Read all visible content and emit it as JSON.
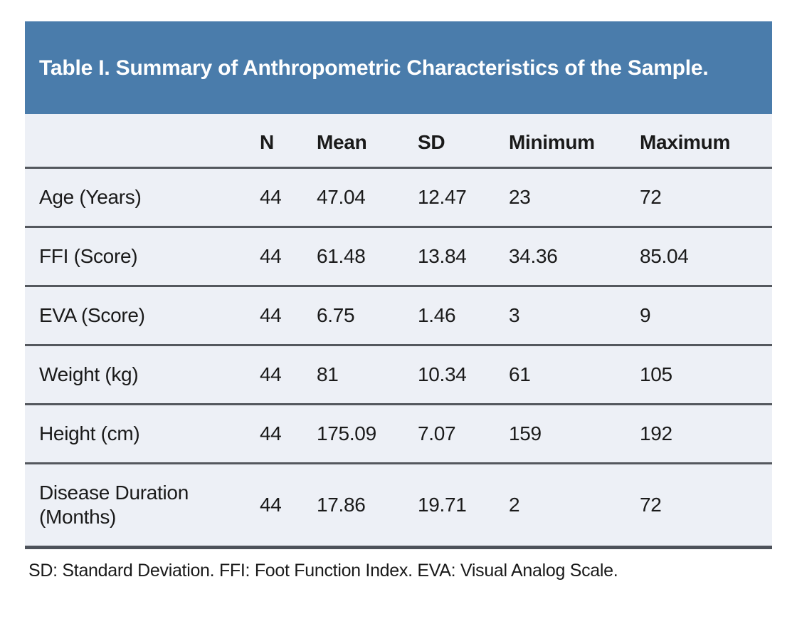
{
  "table": {
    "title": "Table I. Summary of Anthropometric Characteristics of the Sample.",
    "columns": [
      "",
      "N",
      "Mean",
      "SD",
      "Minimum",
      "Maximum"
    ],
    "rows": [
      {
        "label": "Age (Years)",
        "n": "44",
        "mean": "47.04",
        "sd": "12.47",
        "min": "23",
        "max": "72"
      },
      {
        "label": "FFI (Score)",
        "n": "44",
        "mean": "61.48",
        "sd": "13.84",
        "min": "34.36",
        "max": "85.04"
      },
      {
        "label": "EVA (Score)",
        "n": "44",
        "mean": "6.75",
        "sd": "1.46",
        "min": "3",
        "max": "9"
      },
      {
        "label": "Weight (kg)",
        "n": "44",
        "mean": "81",
        "sd": "10.34",
        "min": "61",
        "max": "105"
      },
      {
        "label": "Height (cm)",
        "n": "44",
        "mean": "175.09",
        "sd": "7.07",
        "min": "159",
        "max": "192"
      },
      {
        "label": "Disease Duration (Months)",
        "n": "44",
        "mean": "17.86",
        "sd": "19.71",
        "min": "2",
        "max": "72"
      }
    ],
    "footnote": "SD: Standard Deviation. FFI: Foot Function Index. EVA: Visual Analog Scale."
  },
  "colors": {
    "header_bg": "#4a7cab",
    "header_text": "#ffffff",
    "row_bg": "#edf0f6",
    "divider": "#54585e",
    "bottom_border": "#4d525a",
    "page_bg": "#ffffff",
    "text": "#1a1a1a"
  }
}
